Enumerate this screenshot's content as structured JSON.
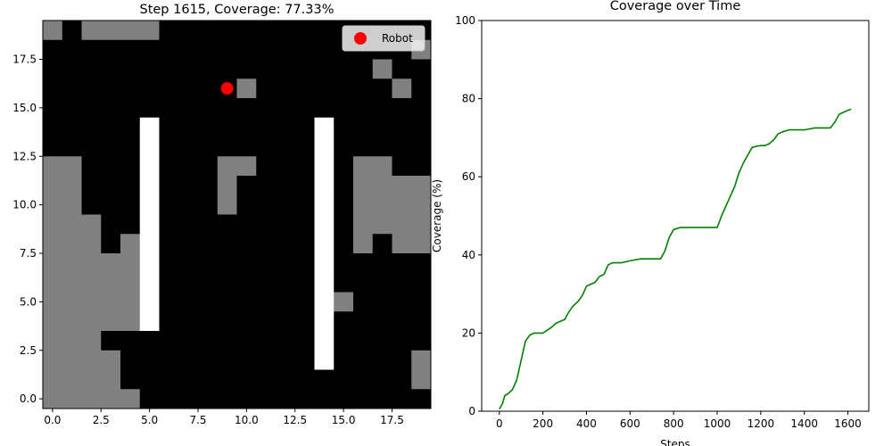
{
  "chart_data": [
    {
      "type": "heatmap",
      "title": "Step 1615, Coverage: 77.33%",
      "xlim": [
        -0.5,
        19.5
      ],
      "ylim": [
        -0.5,
        19.5
      ],
      "x_ticks": [
        0,
        2.5,
        5,
        7.5,
        10,
        12.5,
        15,
        17.5
      ],
      "y_ticks": [
        0,
        2.5,
        5,
        7.5,
        10,
        12.5,
        15,
        17.5
      ],
      "x_tick_labels": [
        "0.0",
        "2.5",
        "5.0",
        "7.5",
        "10.0",
        "12.5",
        "15.0",
        "17.5"
      ],
      "y_tick_labels": [
        "0.0",
        "2.5",
        "5.0",
        "7.5",
        "10.0",
        "12.5",
        "15.0",
        "17.5"
      ],
      "value_legend": {
        "0": "#000000",
        "1": "#808080",
        "2": "#ffffff"
      },
      "grid_rows_top_to_bottom": [
        "10111100000000000000",
        "00000000000000000001",
        "00000000000000000100",
        "00000000001000000010",
        "00000000000000000000",
        "00000200000000200000",
        "00000200000000200000",
        "11000200011000201100",
        "11000200010000201111",
        "11000200010000201111",
        "11100200000000201111",
        "11101200000000201011",
        "11111200000000200000",
        "11111200000000200000",
        "11111200000000210000",
        "11111200000000200000",
        "11100000000000200000",
        "11110000000000200001",
        "11110000000000000001",
        "11111000000000000000"
      ],
      "robot": {
        "x": 9,
        "y": 16,
        "color": "#ff0000"
      },
      "legend": {
        "label": "Robot",
        "position": "upper right"
      }
    },
    {
      "type": "line",
      "title": "Coverage over Time",
      "xlabel": "Steps",
      "ylabel": "Coverage (%)",
      "xlim": [
        -81,
        1696
      ],
      "ylim": [
        0,
        100
      ],
      "x_ticks": [
        0,
        200,
        400,
        600,
        800,
        1000,
        1200,
        1400,
        1600
      ],
      "y_ticks": [
        0,
        20,
        40,
        60,
        80,
        100
      ],
      "series": [
        {
          "color": "#008000",
          "x": [
            0,
            15,
            25,
            40,
            60,
            80,
            100,
            120,
            140,
            160,
            200,
            240,
            260,
            300,
            320,
            340,
            360,
            380,
            400,
            420,
            440,
            460,
            480,
            500,
            520,
            560,
            600,
            650,
            700,
            740,
            760,
            780,
            800,
            830,
            860,
            900,
            950,
            1000,
            1010,
            1020,
            1040,
            1060,
            1080,
            1100,
            1120,
            1140,
            1160,
            1180,
            1200,
            1220,
            1240,
            1260,
            1280,
            1300,
            1330,
            1360,
            1400,
            1450,
            1500,
            1520,
            1540,
            1560,
            1580,
            1600,
            1615
          ],
          "y": [
            0.5,
            2,
            4,
            4.5,
            5.5,
            8,
            13,
            18,
            19.5,
            20,
            20,
            21.5,
            22.5,
            23.5,
            25.5,
            27,
            28,
            29.5,
            32,
            32.5,
            33,
            34.5,
            35,
            37.5,
            38,
            38,
            38.5,
            39,
            39,
            39,
            41,
            44.5,
            46.5,
            47,
            47,
            47,
            47,
            47,
            48.5,
            50,
            52.5,
            55,
            57.5,
            61,
            63.5,
            65.5,
            67.5,
            67.8,
            68,
            68,
            68.5,
            69.5,
            71,
            71.5,
            72,
            72,
            72,
            72.5,
            72.5,
            72.5,
            74,
            76,
            76.5,
            77,
            77.33
          ]
        }
      ]
    }
  ]
}
